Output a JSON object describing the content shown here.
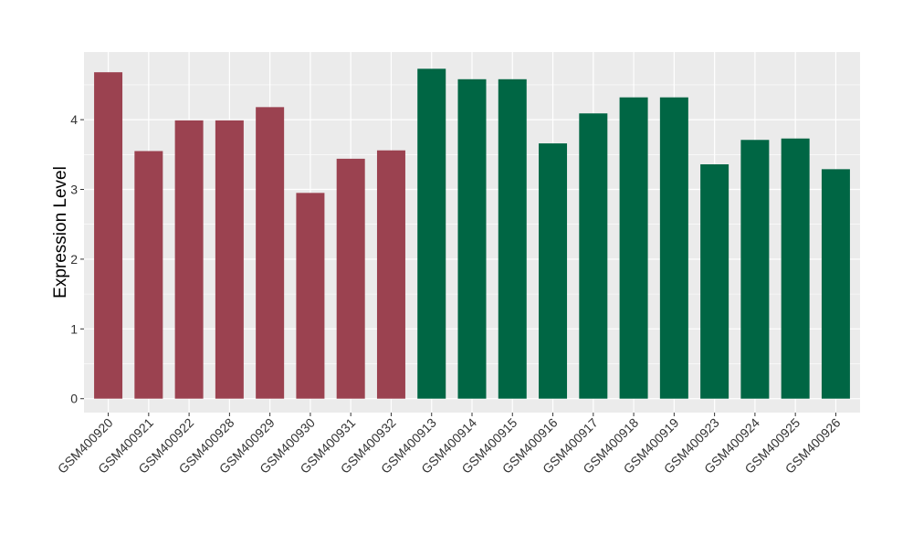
{
  "chart_data": {
    "type": "bar",
    "title": "",
    "xlabel": "",
    "ylabel": "Expression Level",
    "ylim": [
      -0.2,
      4.97
    ],
    "yticks": [
      0,
      1,
      2,
      3,
      4
    ],
    "grid": true,
    "categories": [
      "GSM400920",
      "GSM400921",
      "GSM400922",
      "GSM400928",
      "GSM400929",
      "GSM400930",
      "GSM400931",
      "GSM400932",
      "GSM400913",
      "GSM400914",
      "GSM400915",
      "GSM400916",
      "GSM400917",
      "GSM400918",
      "GSM400919",
      "GSM400923",
      "GSM400924",
      "GSM400925",
      "GSM400926"
    ],
    "values": [
      4.68,
      3.55,
      3.99,
      3.99,
      4.18,
      2.95,
      3.44,
      3.56,
      4.73,
      4.58,
      4.58,
      3.66,
      4.09,
      4.32,
      4.32,
      3.36,
      3.71,
      3.73,
      3.29
    ],
    "group_colors": [
      "#9b4250",
      "#9b4250",
      "#9b4250",
      "#9b4250",
      "#9b4250",
      "#9b4250",
      "#9b4250",
      "#9b4250",
      "#006644",
      "#006644",
      "#006644",
      "#006644",
      "#006644",
      "#006644",
      "#006644",
      "#006644",
      "#006644",
      "#006644",
      "#006644"
    ],
    "panel_background": "#ebebeb",
    "grid_color": "#ffffff"
  }
}
